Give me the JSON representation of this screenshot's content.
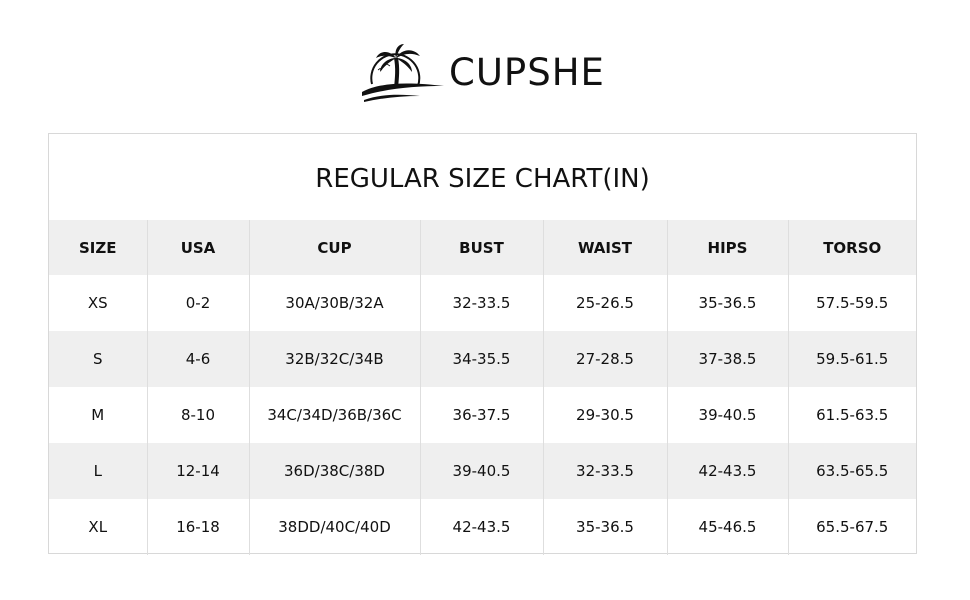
{
  "brand": {
    "name": "CUPSHE",
    "logo_icon": "palm-tree-sunset-logo"
  },
  "chart": {
    "title": "REGULAR SIZE CHART(IN)",
    "headers": [
      "SIZE",
      "USA",
      "CUP",
      "BUST",
      "WAIST",
      "HIPS",
      "TORSO"
    ],
    "rows": [
      [
        "XS",
        "0-2",
        "30A/30B/32A",
        "32-33.5",
        "25-26.5",
        "35-36.5",
        "57.5-59.5"
      ],
      [
        "S",
        "4-6",
        "32B/32C/34B",
        "34-35.5",
        "27-28.5",
        "37-38.5",
        "59.5-61.5"
      ],
      [
        "M",
        "8-10",
        "34C/34D/36B/36C",
        "36-37.5",
        "29-30.5",
        "39-40.5",
        "61.5-63.5"
      ],
      [
        "L",
        "12-14",
        "36D/38C/38D",
        "39-40.5",
        "32-33.5",
        "42-43.5",
        "63.5-65.5"
      ],
      [
        "XL",
        "16-18",
        "38DD/40C/40D",
        "42-43.5",
        "35-36.5",
        "45-46.5",
        "65.5-67.5"
      ]
    ]
  },
  "colors": {
    "stripe": "#efefef",
    "border": "#d8d8d8"
  }
}
